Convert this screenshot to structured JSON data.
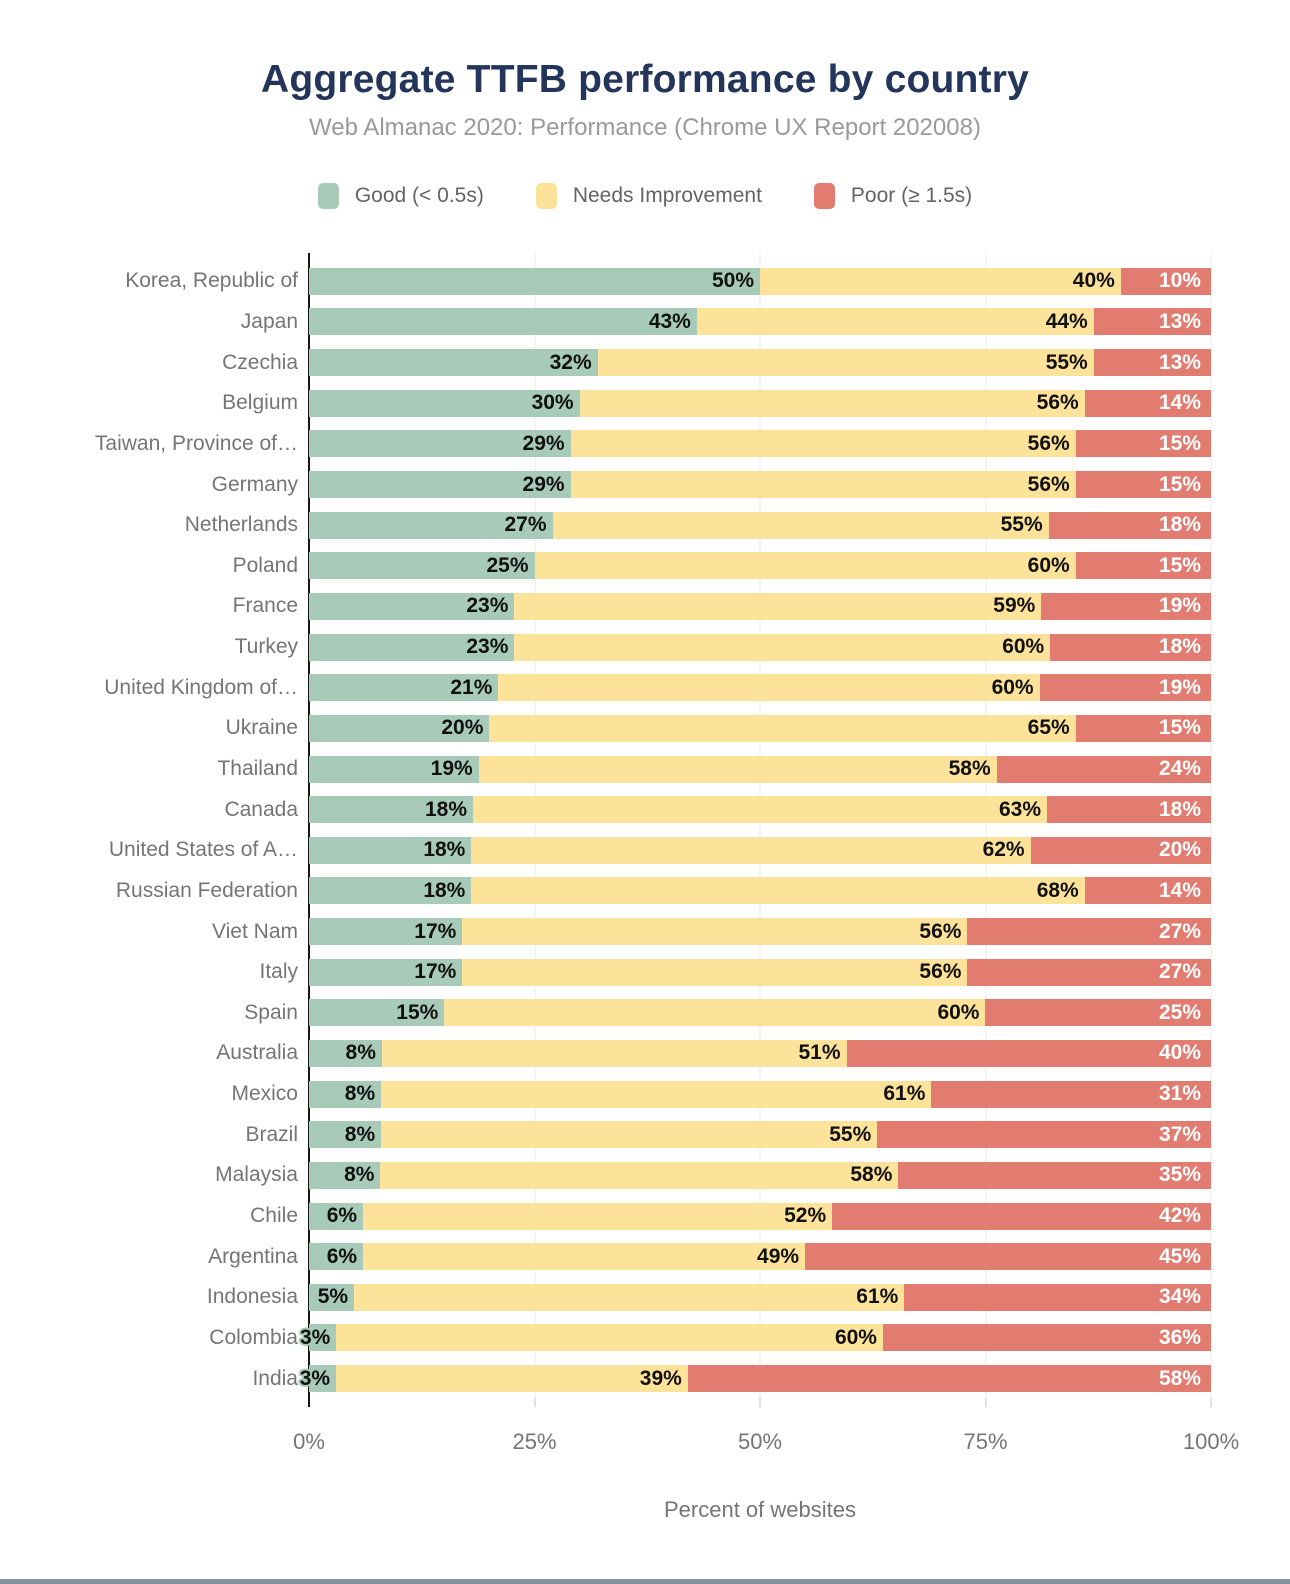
{
  "title": "Aggregate TTFB performance by country",
  "subtitle": "Web Almanac 2020: Performance (Chrome UX Report 202008)",
  "legend": {
    "items": [
      {
        "label": "Good (< 0.5s)",
        "color": "#a8cab8"
      },
      {
        "label": "Needs Improvement",
        "color": "#fde39a"
      },
      {
        "label": "Poor (≥ 1.5s)",
        "color": "#e27c71"
      }
    ]
  },
  "xaxis": {
    "title": "Percent of websites",
    "ticks": [
      {
        "label": "0%",
        "pos": 0
      },
      {
        "label": "25%",
        "pos": 25
      },
      {
        "label": "50%",
        "pos": 50
      },
      {
        "label": "75%",
        "pos": 75
      },
      {
        "label": "100%",
        "pos": 100
      }
    ]
  },
  "colors": {
    "good": "#a8cab8",
    "needs_improvement": "#fde39a",
    "poor": "#e27c71",
    "title_text": "#24355b",
    "subtitle_text": "#9a9a9a",
    "label_text": "#757575",
    "axis_line": "#161616",
    "gridline": "#e9e9e9",
    "value_text_dark": "#101010",
    "value_text_light": "#ffffff",
    "footer_bar": "#8794a0"
  },
  "chart_data": {
    "type": "bar",
    "orientation": "horizontal",
    "stacked": true,
    "title": "Aggregate TTFB performance by country",
    "subtitle": "Web Almanac 2020: Performance (Chrome UX Report 202008)",
    "xlabel": "Percent of websites",
    "ylabel": "",
    "xlim": [
      0,
      100
    ],
    "value_suffix": "%",
    "grid": "vertical",
    "legend_position": "top",
    "categories": [
      "Korea, Republic of",
      "Japan",
      "Czechia",
      "Belgium",
      "Taiwan, Province of…",
      "Germany",
      "Netherlands",
      "Poland",
      "France",
      "Turkey",
      "United Kingdom of…",
      "Ukraine",
      "Thailand",
      "Canada",
      "United States of A…",
      "Russian Federation",
      "Viet Nam",
      "Italy",
      "Spain",
      "Australia",
      "Mexico",
      "Brazil",
      "Malaysia",
      "Chile",
      "Argentina",
      "Indonesia",
      "Colombia",
      "India"
    ],
    "series": [
      {
        "name": "Good (< 0.5s)",
        "color": "#a8cab8",
        "values": [
          50,
          43,
          32,
          30,
          29,
          29,
          27,
          25,
          23,
          23,
          21,
          20,
          19,
          18,
          18,
          18,
          17,
          17,
          15,
          8,
          8,
          8,
          8,
          6,
          6,
          5,
          3,
          3
        ]
      },
      {
        "name": "Needs Improvement",
        "color": "#fde39a",
        "values": [
          40,
          44,
          55,
          56,
          56,
          56,
          55,
          60,
          59,
          60,
          60,
          65,
          58,
          63,
          62,
          68,
          56,
          56,
          60,
          51,
          61,
          55,
          58,
          52,
          49,
          61,
          60,
          39
        ]
      },
      {
        "name": "Poor (≥ 1.5s)",
        "color": "#e27c71",
        "values": [
          10,
          13,
          13,
          14,
          15,
          15,
          18,
          15,
          19,
          18,
          19,
          15,
          24,
          18,
          20,
          14,
          27,
          27,
          25,
          40,
          31,
          37,
          35,
          42,
          45,
          34,
          36,
          58
        ]
      }
    ]
  }
}
